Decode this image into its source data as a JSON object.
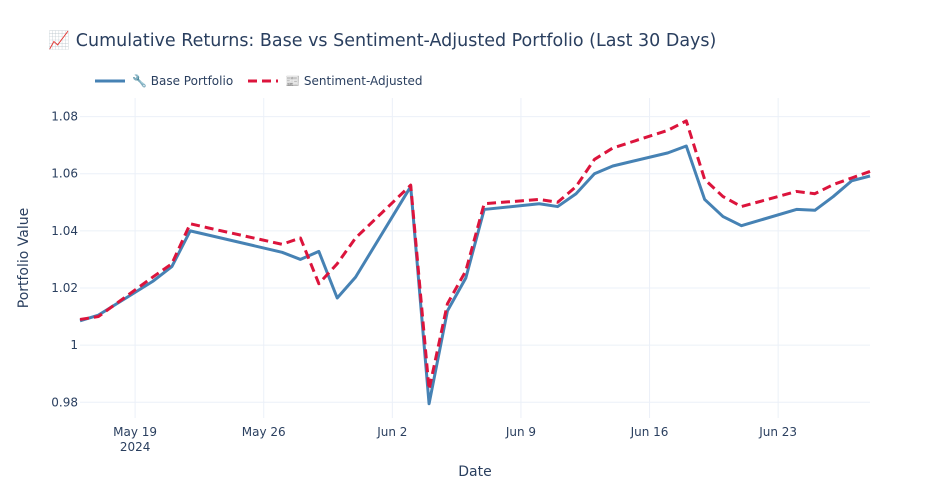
{
  "chart_data": {
    "type": "line",
    "title_icon": "📈",
    "title": "Cumulative Returns: Base vs Sentiment-Adjusted Portfolio (Last 30 Days)",
    "xlabel": "Date",
    "ylabel": "Portfolio Value",
    "x_range": [
      "2024-05-16",
      "2024-06-28"
    ],
    "ylim": [
      0.9745,
      1.0865
    ],
    "yticks": [
      0.98,
      1,
      1.02,
      1.04,
      1.06,
      1.08
    ],
    "ytick_labels": [
      "0.98",
      "1",
      "1.02",
      "1.04",
      "1.06",
      "1.08"
    ],
    "xticks": [
      {
        "date": "2024-05-19",
        "label": "May 19",
        "sublabel": "2024"
      },
      {
        "date": "2024-05-26",
        "label": "May 26",
        "sublabel": ""
      },
      {
        "date": "2024-06-02",
        "label": "Jun 2",
        "sublabel": ""
      },
      {
        "date": "2024-06-09",
        "label": "Jun 9",
        "sublabel": ""
      },
      {
        "date": "2024-06-16",
        "label": "Jun 16",
        "sublabel": ""
      },
      {
        "date": "2024-06-23",
        "label": "Jun 23",
        "sublabel": ""
      }
    ],
    "grid": true,
    "legend_position": "top-left",
    "series": [
      {
        "name": "🔧 Base Portfolio",
        "color": "#4682b4",
        "dash": "solid",
        "points": [
          [
            "2024-05-16",
            1.0085
          ],
          [
            "2024-05-17",
            1.0105
          ],
          [
            "2024-05-20",
            1.0225
          ],
          [
            "2024-05-21",
            1.0275
          ],
          [
            "2024-05-22",
            1.04
          ],
          [
            "2024-05-23",
            1.0385
          ],
          [
            "2024-05-27",
            1.0325
          ],
          [
            "2024-05-28",
            1.03
          ],
          [
            "2024-05-29",
            1.0328
          ],
          [
            "2024-05-30",
            1.0165
          ],
          [
            "2024-05-31",
            1.0238
          ],
          [
            "2024-06-03",
            1.0555
          ],
          [
            "2024-06-04",
            0.9795
          ],
          [
            "2024-06-05",
            1.012
          ],
          [
            "2024-06-06",
            1.0235
          ],
          [
            "2024-06-07",
            1.0475
          ],
          [
            "2024-06-10",
            1.0495
          ],
          [
            "2024-06-11",
            1.0485
          ],
          [
            "2024-06-12",
            1.053
          ],
          [
            "2024-06-13",
            1.06
          ],
          [
            "2024-06-14",
            1.0627
          ],
          [
            "2024-06-17",
            1.0673
          ],
          [
            "2024-06-18",
            1.0697
          ],
          [
            "2024-06-19",
            1.051
          ],
          [
            "2024-06-20",
            1.045
          ],
          [
            "2024-06-21",
            1.0418
          ],
          [
            "2024-06-24",
            1.0475
          ],
          [
            "2024-06-25",
            1.0472
          ],
          [
            "2024-06-26",
            1.052
          ],
          [
            "2024-06-27",
            1.0575
          ],
          [
            "2024-06-28",
            1.0592
          ]
        ]
      },
      {
        "name": "📰 Sentiment-Adjusted",
        "color": "#dc143c",
        "dash": "dash",
        "points": [
          [
            "2024-05-16",
            1.009
          ],
          [
            "2024-05-17",
            1.01
          ],
          [
            "2024-05-20",
            1.024
          ],
          [
            "2024-05-21",
            1.0285
          ],
          [
            "2024-05-22",
            1.0425
          ],
          [
            "2024-05-23",
            1.041
          ],
          [
            "2024-05-27",
            1.0353
          ],
          [
            "2024-05-28",
            1.0375
          ],
          [
            "2024-05-29",
            1.0215
          ],
          [
            "2024-05-30",
            1.0285
          ],
          [
            "2024-05-31",
            1.0375
          ],
          [
            "2024-06-03",
            1.056
          ],
          [
            "2024-06-04",
            0.9845
          ],
          [
            "2024-06-05",
            1.0145
          ],
          [
            "2024-06-06",
            1.026
          ],
          [
            "2024-06-07",
            1.0495
          ],
          [
            "2024-06-10",
            1.051
          ],
          [
            "2024-06-11",
            1.05
          ],
          [
            "2024-06-12",
            1.0555
          ],
          [
            "2024-06-13",
            1.065
          ],
          [
            "2024-06-14",
            1.069
          ],
          [
            "2024-06-17",
            1.0752
          ],
          [
            "2024-06-18",
            1.0785
          ],
          [
            "2024-06-19",
            1.058
          ],
          [
            "2024-06-20",
            1.052
          ],
          [
            "2024-06-21",
            1.0485
          ],
          [
            "2024-06-24",
            1.0538
          ],
          [
            "2024-06-25",
            1.053
          ],
          [
            "2024-06-26",
            1.0562
          ],
          [
            "2024-06-27",
            1.0585
          ],
          [
            "2024-06-28",
            1.0608
          ]
        ]
      }
    ]
  }
}
